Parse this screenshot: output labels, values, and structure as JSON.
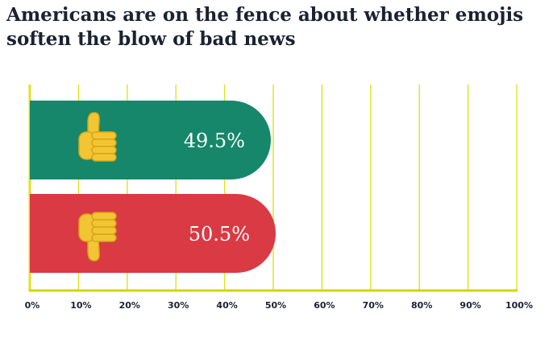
{
  "title_lines": [
    "Americans are on the fence about whether emojis",
    "soften the blow of bad news"
  ],
  "colors": {
    "grid": "#dfe21f",
    "axis": "#d2d60e",
    "thumb_fill": "#f2c535",
    "thumb_shadow": "#d9a514",
    "text": "#1a2233"
  },
  "chart_data": {
    "type": "bar",
    "orientation": "horizontal",
    "categories": [
      "thumbs-up",
      "thumbs-down"
    ],
    "values": [
      49.5,
      50.5
    ],
    "value_labels": [
      "49.5%",
      "50.5%"
    ],
    "bar_colors": [
      "#16876a",
      "#d93a43"
    ],
    "bar_icons": [
      "thumbs-up-icon",
      "thumbs-down-icon"
    ],
    "x_ticks": [
      0,
      10,
      20,
      30,
      40,
      50,
      60,
      70,
      80,
      90,
      100
    ],
    "x_tick_labels": [
      "0%",
      "10%",
      "20%",
      "30%",
      "40%",
      "50%",
      "60%",
      "70%",
      "80%",
      "90%",
      "100%"
    ],
    "xlim": [
      0,
      100
    ],
    "grid": true,
    "legend": "none"
  }
}
